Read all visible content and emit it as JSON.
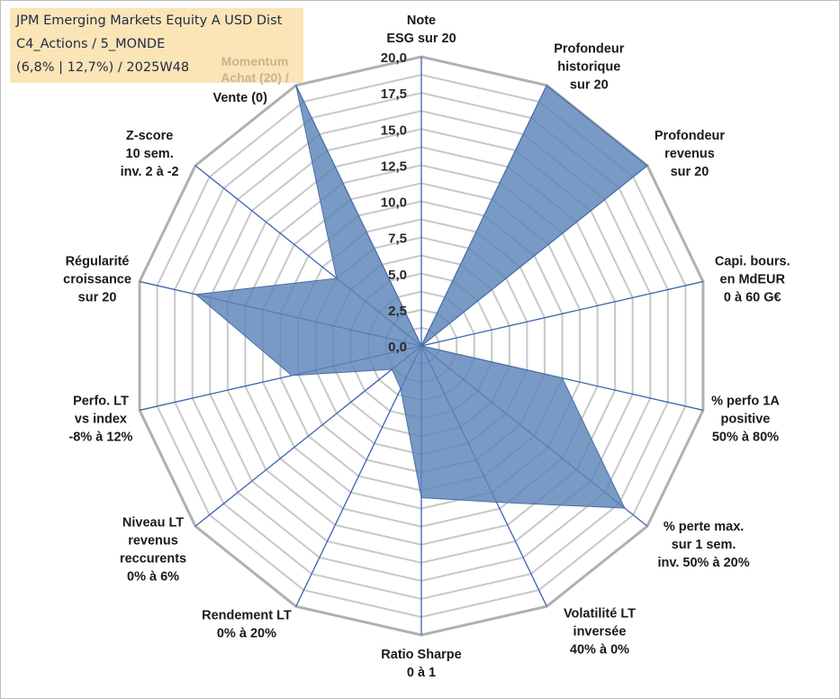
{
  "header": {
    "line1": "JPM Emerging Markets Equity A USD Dist",
    "line2": "C4_Actions / 5_MONDE",
    "line3": "(6,8% | 12,7%) / 2025W48",
    "momentum_line1": "Momentum",
    "momentum_line2": "Achat (20) /"
  },
  "colors": {
    "area_fill": "#5b84b8",
    "spoke": "#3a64b0",
    "grid": "#c8c8c8",
    "outer_grid": "#b0b0b0",
    "title_bg": "#fbe5b6"
  },
  "chart_data": {
    "type": "radar",
    "rmin": 0,
    "rmax": 20,
    "tick_labels": [
      "0,0",
      "2,5",
      "5,0",
      "7,5",
      "10,0",
      "12,5",
      "15,0",
      "17,5",
      "20,0"
    ],
    "grid_levels": 16,
    "axes": [
      {
        "lines": [
          "Note",
          "ESG sur 20"
        ],
        "value": 0
      },
      {
        "lines": [
          "Profondeur",
          "historique",
          "sur 20"
        ],
        "value": 20
      },
      {
        "lines": [
          "Profondeur",
          "revenus",
          "sur 20"
        ],
        "value": 20
      },
      {
        "lines": [
          "Capi. bours.",
          "en MdEUR",
          "0 à 60 G€"
        ],
        "value": 0
      },
      {
        "lines": [
          "% perfo 1A",
          "positive",
          "50% à 80%"
        ],
        "value": 10
      },
      {
        "lines": [
          "% perte max.",
          "sur 1 sem.",
          "inv. 50% à 20%"
        ],
        "value": 18
      },
      {
        "lines": [
          "Volatilité LT",
          "inversée",
          "40% à 0%"
        ],
        "value": 12
      },
      {
        "lines": [
          "Ratio Sharpe",
          "0 à 1"
        ],
        "value": 10.5
      },
      {
        "lines": [
          "Rendement LT",
          "0% à 20%"
        ],
        "value": 3.3
      },
      {
        "lines": [
          "Niveau LT",
          "revenus",
          "reccurents",
          "0% à 6%"
        ],
        "value": 2.6
      },
      {
        "lines": [
          "Perfo. LT",
          "vs index",
          "-8% à 12%"
        ],
        "value": 9.2
      },
      {
        "lines": [
          "Régularité",
          "croissance",
          "sur 20"
        ],
        "value": 16
      },
      {
        "lines": [
          "Z-score",
          "10 sem.",
          "inv. 2 à -2"
        ],
        "value": 7.5
      },
      {
        "lines": [
          "Vente (0)"
        ],
        "value": 20
      }
    ]
  }
}
